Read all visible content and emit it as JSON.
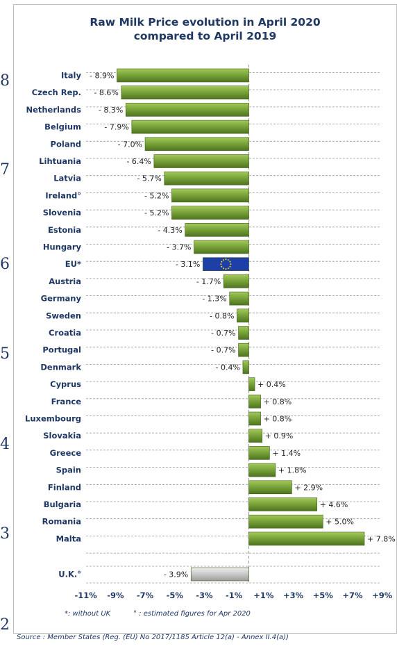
{
  "chart_data": {
    "type": "bar",
    "orientation": "horizontal",
    "title": [
      "Raw Milk Price evolution in April 2020",
      "compared to April 2019"
    ],
    "categories": [
      "Italy",
      "Czech Rep.",
      "Netherlands",
      "Belgium",
      "Poland",
      "Lihtuania",
      "Latvia",
      "Ireland°",
      "Slovenia",
      "Estonia",
      "Hungary",
      "EU*",
      "Austria",
      "Germany",
      "Sweden",
      "Croatia",
      "Portugal",
      "Denmark",
      "Cyprus",
      "France",
      "Luxembourg",
      "Slovakia",
      "Greece",
      "Spain",
      "Finland",
      "Bulgaria",
      "Romania",
      "Malta"
    ],
    "values": [
      -8.9,
      -8.6,
      -8.3,
      -7.9,
      -7.0,
      -6.4,
      -5.7,
      -5.2,
      -5.2,
      -4.3,
      -3.7,
      -3.1,
      -1.7,
      -1.3,
      -0.8,
      -0.7,
      -0.7,
      -0.4,
      0.4,
      0.8,
      0.8,
      0.9,
      1.4,
      1.8,
      2.9,
      4.6,
      5.0,
      7.8
    ],
    "value_labels": [
      "- 8.9%",
      "- 8.6%",
      "- 8.3%",
      "- 7.9%",
      "- 7.0%",
      "- 6.4%",
      "- 5.7%",
      "- 5.2%",
      "- 5.2%",
      "- 4.3%",
      "- 3.7%",
      "- 3.1%",
      "- 1.7%",
      "- 1.3%",
      "- 0.8%",
      "- 0.7%",
      "- 0.7%",
      "- 0.4%",
      "+ 0.4%",
      "+ 0.8%",
      "+ 0.8%",
      "+ 0.9%",
      "+ 1.4%",
      "+ 1.8%",
      "+ 2.9%",
      "+ 4.6%",
      "+ 5.0%",
      "+ 7.8%"
    ],
    "highlight": {
      "category": "EU*",
      "color": "#1f3fa8",
      "star_color": "#ffd700"
    },
    "separate": {
      "category": "U.K.°",
      "value": -3.9,
      "label": "- 3.9%",
      "color": "#c8c8c8"
    },
    "bar_color": "#7aa53a",
    "xlim": [
      -11,
      9
    ],
    "xticks": [
      "-11%",
      "-9%",
      "-7%",
      "-5%",
      "-3%",
      "-1%",
      "+1%",
      "+3%",
      "+5%",
      "+7%",
      "+9%"
    ],
    "grid": "horizontal-dashed",
    "footnotes": [
      "*: without UK",
      "° : estimated figures for Apr 2020"
    ],
    "source": "Source : Member States (Reg. (EU) No 2017/1185 Article 12(a) - Annex II.4(a))"
  },
  "edge_glyphs": [
    "8",
    "7",
    "6",
    "5",
    "4",
    "3",
    "2"
  ]
}
